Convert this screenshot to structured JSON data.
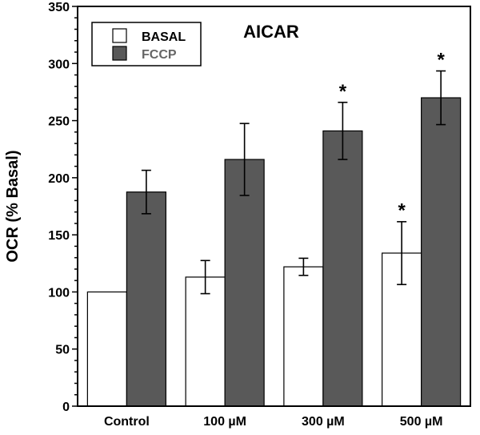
{
  "chart_data": {
    "type": "bar",
    "title": "AICAR",
    "xlabel": "",
    "ylabel": "OCR (% Basal)",
    "ylim": [
      0,
      350
    ],
    "yticks": [
      0,
      50,
      100,
      150,
      200,
      250,
      300,
      350
    ],
    "yticks_labels": [
      "0",
      "50",
      "100",
      "150",
      "200",
      "250",
      "300",
      "350"
    ],
    "grid": false,
    "legend_position": "top-left",
    "categories": [
      "Control",
      "100 µM",
      "300 µM",
      "500 µM"
    ],
    "series": [
      {
        "name": "BASAL",
        "color": "#ffffff",
        "values": [
          100,
          113,
          122,
          134
        ],
        "errors": [
          0,
          14.5,
          7.5,
          27.5
        ],
        "significant": [
          false,
          false,
          false,
          true
        ]
      },
      {
        "name": "FCCP",
        "color": "#595959",
        "values": [
          187.5,
          216,
          241,
          270
        ],
        "errors": [
          19,
          31.5,
          25,
          23.5
        ],
        "significant": [
          false,
          false,
          true,
          true
        ]
      }
    ],
    "significance_marker": "*"
  }
}
